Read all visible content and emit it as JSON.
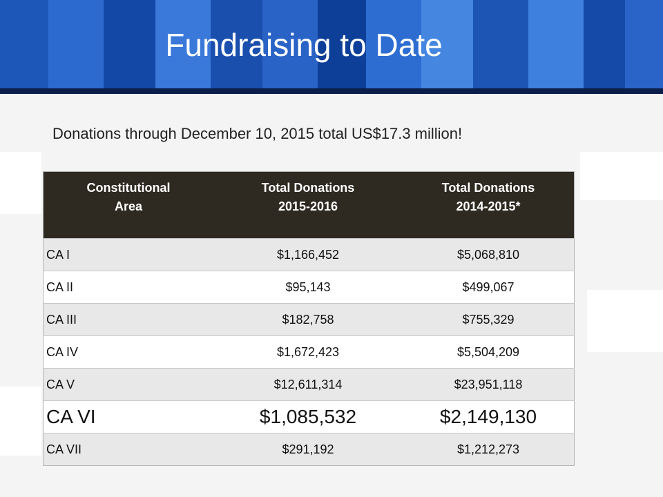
{
  "slide": {
    "title": "Fundraising to Date",
    "subtitle": "Donations through December 10, 2015 total US$17.3 million!"
  },
  "table": {
    "headers": [
      [
        "Constitutional",
        "Area"
      ],
      [
        "Total Donations",
        "2015-2016"
      ],
      [
        "Total Donations",
        "2014-2015*"
      ]
    ],
    "rows": [
      {
        "area": "CA I",
        "d2015": "$1,166,452",
        "d2014": "$5,068,810"
      },
      {
        "area": "CA II",
        "d2015": "$95,143",
        "d2014": "$499,067"
      },
      {
        "area": "CA III",
        "d2015": "$182,758",
        "d2014": "$755,329"
      },
      {
        "area": "CA IV",
        "d2015": "$1,672,423",
        "d2014": "$5,504,209"
      },
      {
        "area": "CA V",
        "d2015": "$12,611,314",
        "d2014": "$23,951,118"
      },
      {
        "area": "CA VI",
        "d2015": "$1,085,532",
        "d2014": "$2,149,130"
      },
      {
        "area": "CA VII",
        "d2015": "$291,192",
        "d2014": "$1,212,273"
      }
    ]
  },
  "colors": {
    "header_band": "#0a3a8c",
    "table_header": "#2e2a22"
  }
}
